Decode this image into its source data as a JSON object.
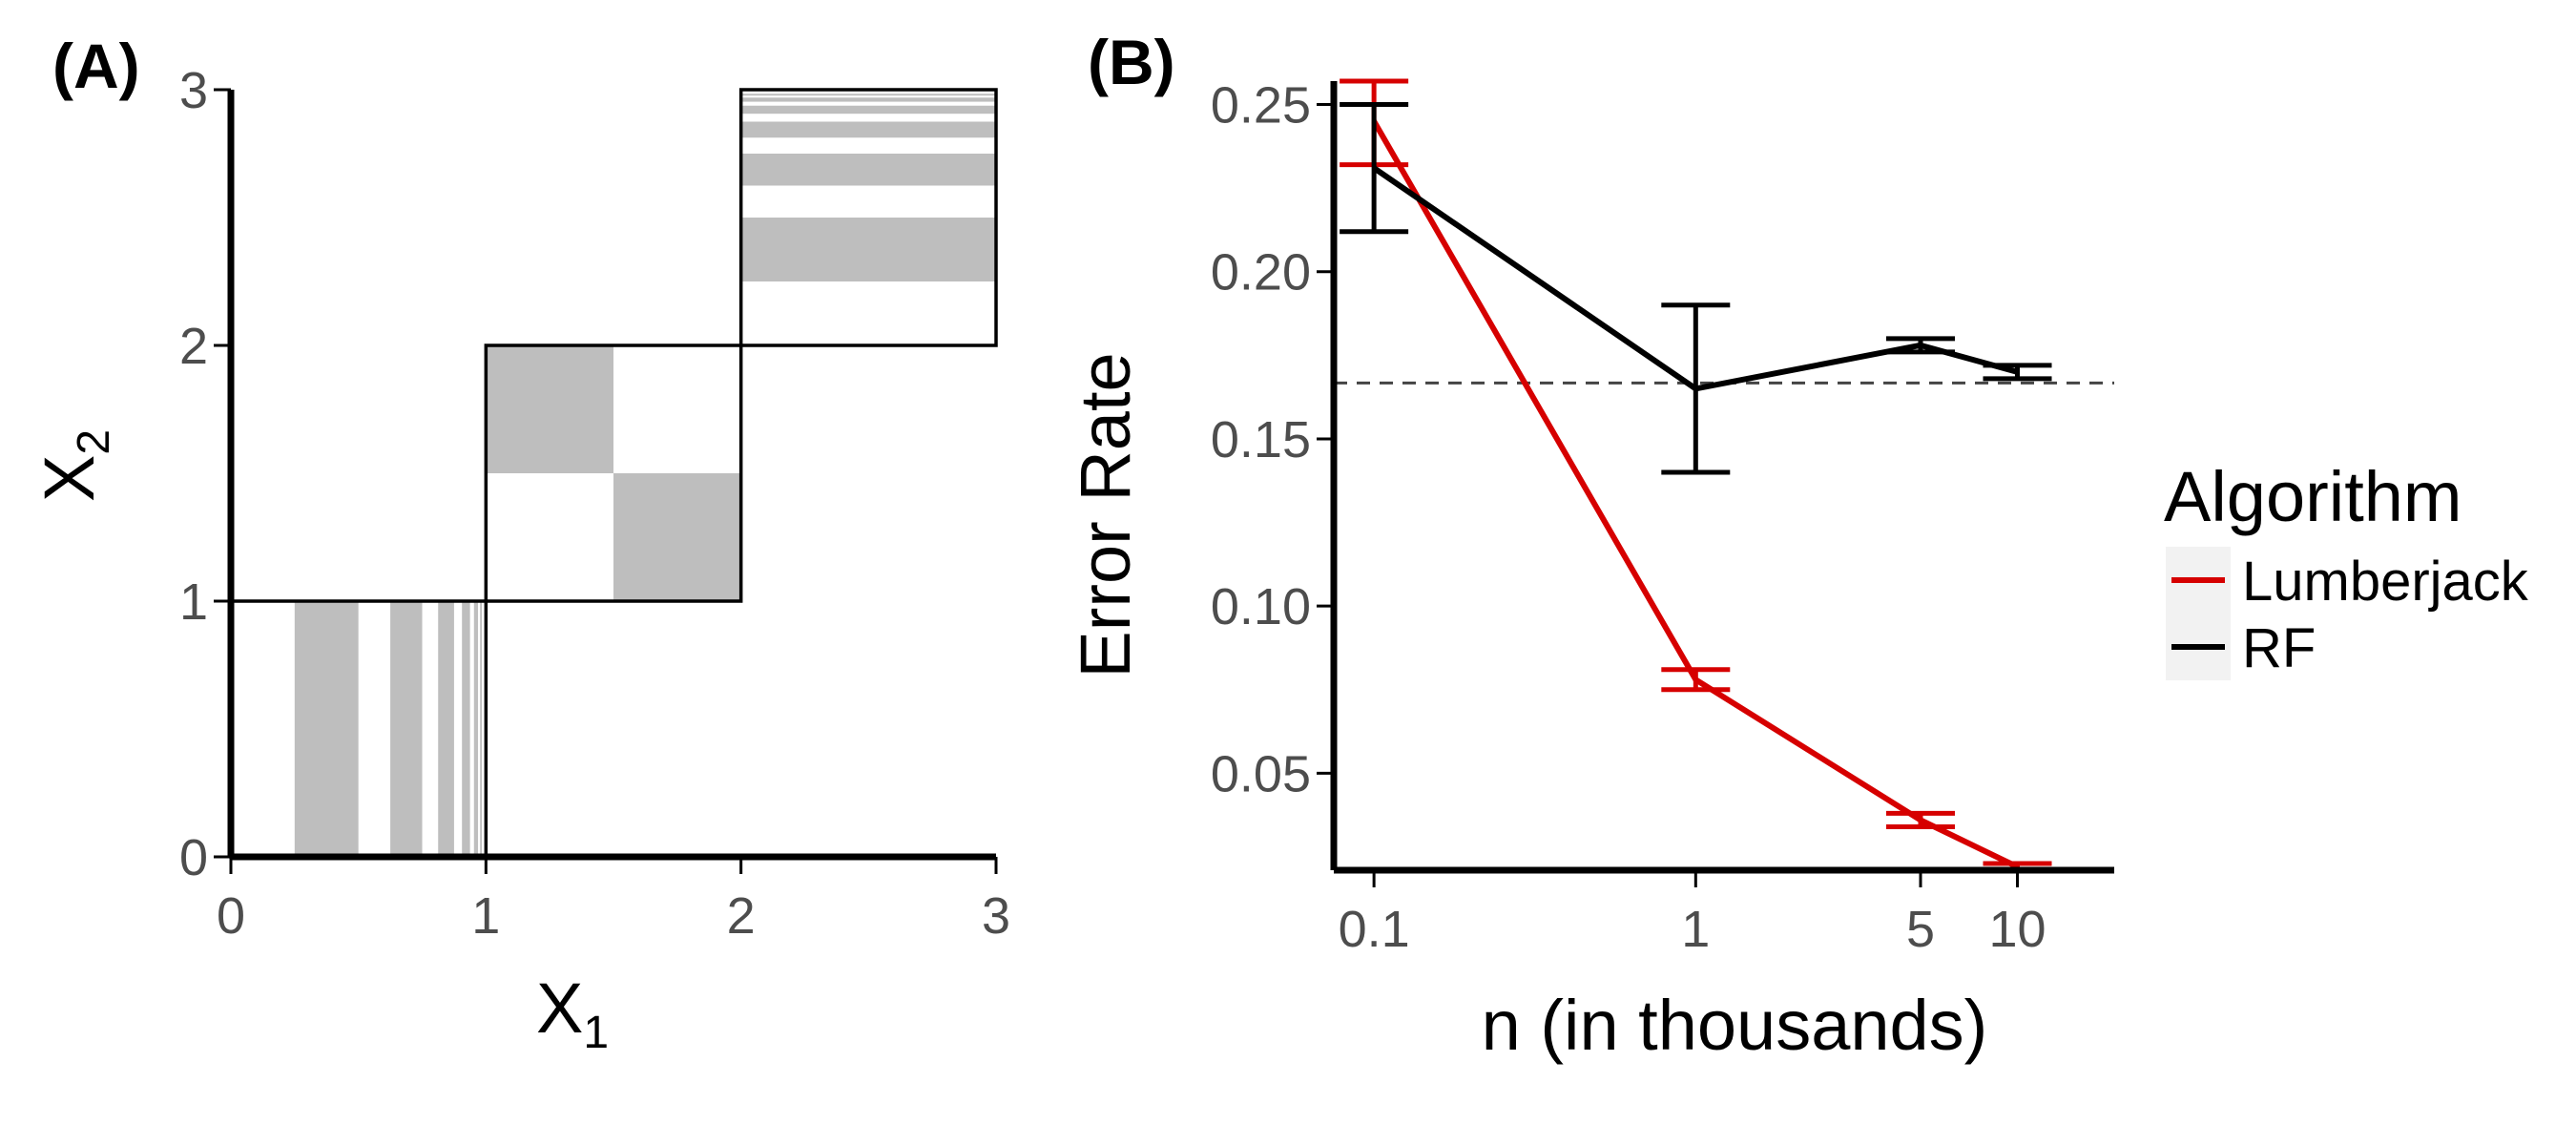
{
  "chart_data": [
    {
      "type": "diagram",
      "panel_label": "(A)",
      "xlabel": "X",
      "xlabel_sub": "1",
      "ylabel": "X",
      "ylabel_sub": "2",
      "xlim": [
        0,
        3
      ],
      "ylim": [
        0,
        3
      ],
      "x_ticks": [
        "0",
        "1",
        "2",
        "3"
      ],
      "y_ticks": [
        "0",
        "1",
        "2",
        "3"
      ],
      "fill_color": "#bebebe",
      "boxes": [
        {
          "x": [
            0,
            1
          ],
          "y": [
            0,
            1
          ]
        },
        {
          "x": [
            1,
            2
          ],
          "y": [
            1,
            2
          ]
        },
        {
          "x": [
            2,
            3
          ],
          "y": [
            2,
            3
          ]
        }
      ],
      "shaded_regions": [
        {
          "x": [
            0.25,
            0.5
          ],
          "y": [
            0,
            1
          ]
        },
        {
          "x": [
            0.625,
            0.75
          ],
          "y": [
            0,
            1
          ]
        },
        {
          "x": [
            0.8125,
            0.875
          ],
          "y": [
            0,
            1
          ]
        },
        {
          "x": [
            0.906,
            0.9375
          ],
          "y": [
            0,
            1
          ]
        },
        {
          "x": [
            0.953,
            0.969
          ],
          "y": [
            0,
            1
          ]
        },
        {
          "x": [
            0.977,
            0.984
          ],
          "y": [
            0,
            1
          ]
        },
        {
          "x": [
            1,
            1.5
          ],
          "y": [
            1.5,
            2
          ]
        },
        {
          "x": [
            1.5,
            2
          ],
          "y": [
            1,
            1.5
          ]
        },
        {
          "x": [
            2,
            3
          ],
          "y": [
            2.25,
            2.5
          ]
        },
        {
          "x": [
            2,
            3
          ],
          "y": [
            2.625,
            2.75
          ]
        },
        {
          "x": [
            2,
            3
          ],
          "y": [
            2.8125,
            2.875
          ]
        },
        {
          "x": [
            2,
            3
          ],
          "y": [
            2.906,
            2.9375
          ]
        },
        {
          "x": [
            2,
            3
          ],
          "y": [
            2.953,
            2.969
          ]
        },
        {
          "x": [
            2,
            3
          ],
          "y": [
            2.977,
            2.984
          ]
        }
      ]
    },
    {
      "type": "line",
      "panel_label": "(B)",
      "xlabel": "n (in thousands)",
      "ylabel": "Error Rate",
      "x_scale": "log",
      "xlim": [
        0.075,
        20
      ],
      "ylim": [
        0.021,
        0.257
      ],
      "x_ticks": [
        {
          "value": 0.1,
          "label": "0.1"
        },
        {
          "value": 1,
          "label": "1"
        },
        {
          "value": 5,
          "label": "5"
        },
        {
          "value": 10,
          "label": "10"
        }
      ],
      "y_ticks": [
        {
          "value": 0.05,
          "label": "0.05"
        },
        {
          "value": 0.1,
          "label": "0.10"
        },
        {
          "value": 0.15,
          "label": "0.15"
        },
        {
          "value": 0.2,
          "label": "0.20"
        },
        {
          "value": 0.25,
          "label": "0.25"
        }
      ],
      "reference_line": {
        "y": 0.1667,
        "style": "dashed"
      },
      "legend": {
        "title": "Algorithm",
        "placement": "right"
      },
      "x": [
        0.1,
        1,
        5,
        10
      ],
      "series": [
        {
          "name": "Lumberjack",
          "color": "#d60000",
          "values": [
            0.245,
            0.078,
            0.036,
            0.022
          ],
          "error_low": [
            0.232,
            0.075,
            0.034,
            0.021
          ],
          "error_high": [
            0.257,
            0.081,
            0.038,
            0.023
          ]
        },
        {
          "name": "RF",
          "color": "#000000",
          "values": [
            0.231,
            0.165,
            0.178,
            0.17
          ],
          "error_low": [
            0.212,
            0.14,
            0.176,
            0.168
          ],
          "error_high": [
            0.25,
            0.19,
            0.18,
            0.172
          ]
        }
      ]
    }
  ]
}
